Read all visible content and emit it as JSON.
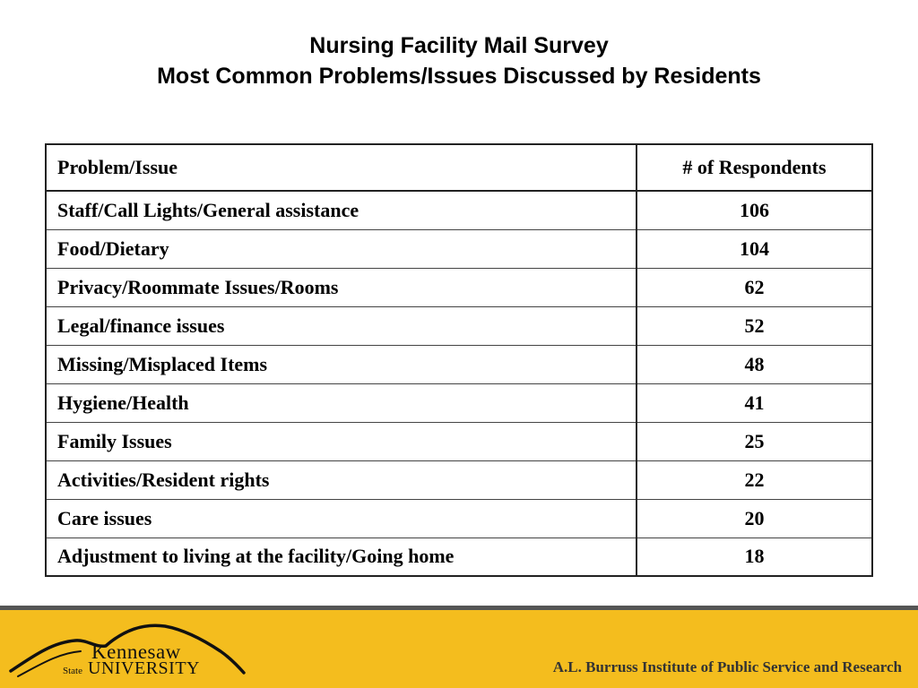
{
  "title": {
    "line1": "Nursing Facility Mail Survey",
    "line2": "Most Common Problems/Issues Discussed by Residents"
  },
  "table": {
    "headers": [
      "Problem/Issue",
      "# of Respondents"
    ],
    "rows": [
      [
        "Staff/Call Lights/General assistance",
        "106"
      ],
      [
        "Food/Dietary",
        "104"
      ],
      [
        "Privacy/Roommate Issues/Rooms",
        "62"
      ],
      [
        "Legal/finance issues",
        "52"
      ],
      [
        "Missing/Misplaced Items",
        "48"
      ],
      [
        "Hygiene/Health",
        "41"
      ],
      [
        "Family Issues",
        "25"
      ],
      [
        "Activities/Resident rights",
        "22"
      ],
      [
        "Care issues",
        "20"
      ],
      [
        "Adjustment to living at the facility/Going home",
        "18"
      ]
    ]
  },
  "footer": {
    "logo_line1": "Kennesaw",
    "logo_state": "State",
    "logo_line2": "UNIVERSITY",
    "institute": "A.L. Burruss Institute of Public Service and Research",
    "background_color": "#f4bd1e"
  }
}
